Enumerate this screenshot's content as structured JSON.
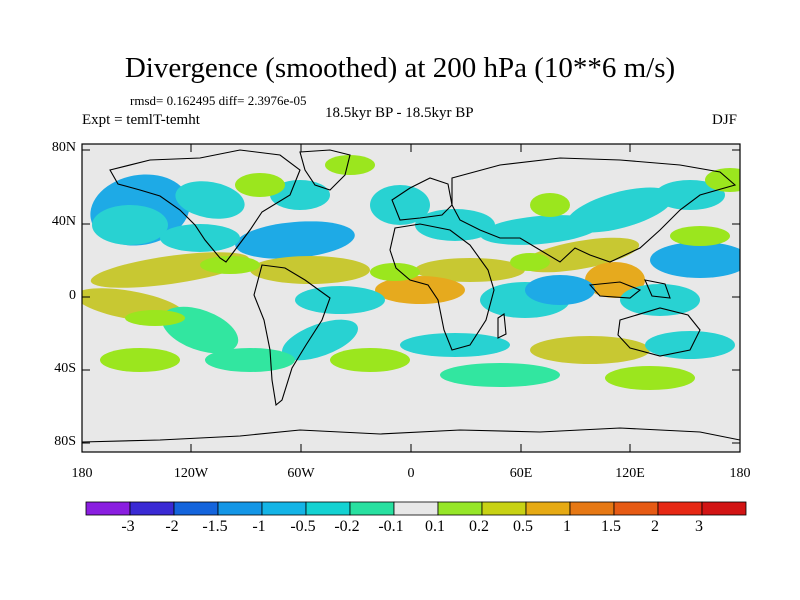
{
  "title": "Divergence (smoothed) at 200 hPa (10**6 m/s)",
  "stats": "rmsd= 0.162495 diff= 2.3976e-05",
  "expt": "Expt = temlT-temht",
  "period": "18.5kyr BP - 18.5kyr BP",
  "season": "DJF",
  "y_ticks": [
    "80N",
    "40N",
    "0",
    "40S",
    "80S"
  ],
  "x_ticks": [
    "180",
    "120W",
    "60W",
    "0",
    "60E",
    "120E",
    "180"
  ],
  "colorbar": {
    "labels": [
      "-3",
      "-2",
      "-1.5",
      "-1",
      "-0.5",
      "-0.2",
      "-0.1",
      "0.1",
      "0.2",
      "0.5",
      "1",
      "1.5",
      "2",
      "3"
    ],
    "colors": [
      "#8a1ee0",
      "#3a2ad4",
      "#1464dc",
      "#1496e6",
      "#14b4e6",
      "#14d2d2",
      "#28e0a0",
      "#e8e8e8",
      "#96e628",
      "#c8d214",
      "#e6aa14",
      "#e67814",
      "#e65a14",
      "#e62814",
      "#d21414"
    ]
  },
  "colors": {
    "ocean_bg": "#e8e8e8",
    "cyan": "#28d2d2",
    "skyblue": "#1eaae6",
    "green": "#32e6a0",
    "lime": "#9be61e",
    "olive": "#c8c832",
    "orange": "#e6aa1e",
    "coast": "#000000"
  }
}
